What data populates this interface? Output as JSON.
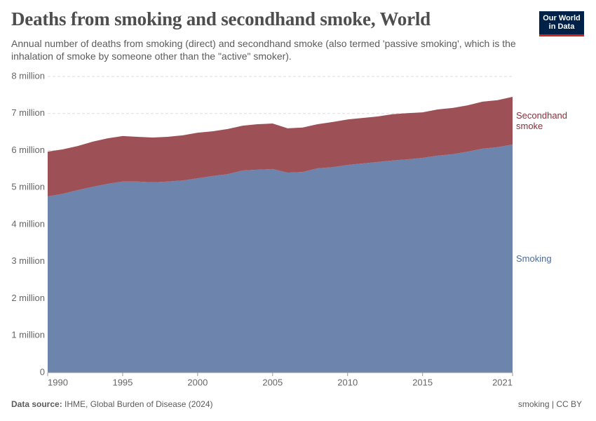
{
  "chart_data": {
    "type": "stacked-area",
    "title": "Deaths from smoking and secondhand smoke, World",
    "subtitle": "Annual number of deaths from smoking (direct) and secondhand smoke (also termed 'passive smoking', which is the inhalation of smoke by someone other than the \"active\" smoker).",
    "logo": "Our World in Data",
    "source_label": "Data source:",
    "source": "IHME, Global Burden of Disease (2024)",
    "license": "smoking | CC BY",
    "x": [
      1990,
      1991,
      1992,
      1993,
      1994,
      1995,
      1996,
      1997,
      1998,
      1999,
      2000,
      2001,
      2002,
      2003,
      2004,
      2005,
      2006,
      2007,
      2008,
      2009,
      2010,
      2011,
      2012,
      2013,
      2014,
      2015,
      2016,
      2017,
      2018,
      2019,
      2020,
      2021
    ],
    "xlim": [
      1990,
      2021
    ],
    "xticks": [
      1990,
      1995,
      2000,
      2005,
      2010,
      2015,
      2021
    ],
    "ylim": [
      0,
      8000000
    ],
    "yticks": [
      {
        "value": 0,
        "label": "0"
      },
      {
        "value": 1000000,
        "label": "1 million"
      },
      {
        "value": 2000000,
        "label": "2 million"
      },
      {
        "value": 3000000,
        "label": "3 million"
      },
      {
        "value": 4000000,
        "label": "4 million"
      },
      {
        "value": 5000000,
        "label": "5 million"
      },
      {
        "value": 6000000,
        "label": "6 million"
      },
      {
        "value": 7000000,
        "label": "7 million"
      },
      {
        "value": 8000000,
        "label": "8 million"
      }
    ],
    "grid": true,
    "series": [
      {
        "name": "Smoking",
        "color": "#6d84ad",
        "label_color": "#4c6a9c",
        "values": [
          4760000,
          4830000,
          4930000,
          5020000,
          5100000,
          5160000,
          5160000,
          5140000,
          5160000,
          5190000,
          5250000,
          5310000,
          5360000,
          5460000,
          5480000,
          5500000,
          5400000,
          5420000,
          5520000,
          5550000,
          5610000,
          5650000,
          5690000,
          5730000,
          5760000,
          5800000,
          5860000,
          5900000,
          5970000,
          6050000,
          6090000,
          6160000
        ]
      },
      {
        "name": "Secondhand smoke",
        "color": "#9e5057",
        "label_color": "#883039",
        "values": [
          1210000,
          1200000,
          1190000,
          1220000,
          1230000,
          1230000,
          1210000,
          1210000,
          1210000,
          1220000,
          1230000,
          1210000,
          1220000,
          1210000,
          1230000,
          1230000,
          1200000,
          1200000,
          1190000,
          1220000,
          1230000,
          1230000,
          1230000,
          1250000,
          1250000,
          1230000,
          1250000,
          1250000,
          1250000,
          1270000,
          1270000,
          1290000
        ]
      }
    ]
  }
}
